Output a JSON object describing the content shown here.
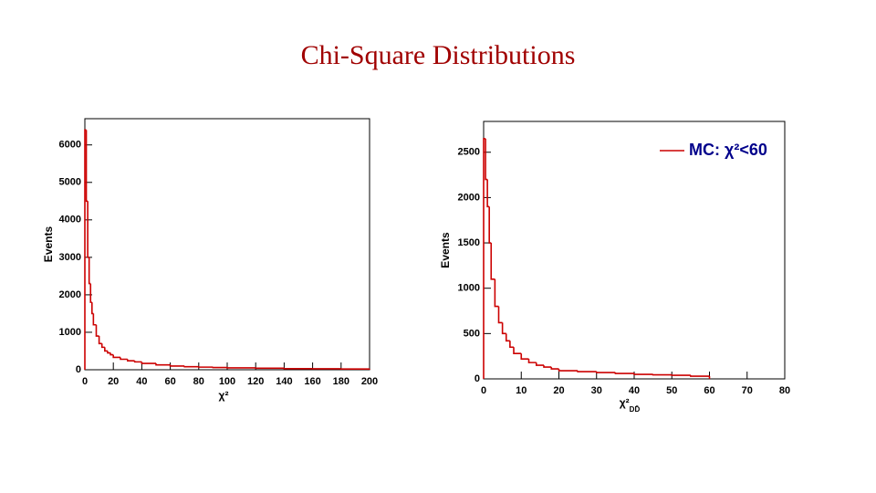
{
  "title": "Chi-Square Distributions",
  "chart_data": [
    {
      "type": "histogram",
      "color": "#cc0000",
      "x_label": "χ²",
      "y_label": "Events",
      "bins": [
        0,
        1,
        2,
        3,
        4,
        5,
        6,
        8,
        10,
        12,
        14,
        16,
        18,
        20,
        25,
        30,
        35,
        40,
        50,
        60,
        70,
        80,
        90,
        100,
        120,
        140,
        160,
        180,
        200
      ],
      "values": [
        6400,
        4500,
        3000,
        2300,
        1800,
        1500,
        1200,
        900,
        700,
        600,
        500,
        450,
        400,
        330,
        280,
        240,
        210,
        170,
        130,
        100,
        80,
        70,
        60,
        50,
        40,
        30,
        25,
        20
      ],
      "xlim": [
        0,
        200
      ],
      "xticks": [
        0,
        20,
        40,
        60,
        80,
        100,
        120,
        140,
        160,
        180,
        200
      ],
      "ylim": [
        0,
        6700
      ],
      "yticks": [
        0,
        1000,
        2000,
        3000,
        4000,
        5000,
        6000
      ]
    },
    {
      "type": "histogram",
      "x_label": "χ²",
      "x_label_subscript": "DD̄",
      "y_label": "Events",
      "legend": "upper right",
      "bins": [
        0,
        0.5,
        1,
        1.5,
        2,
        3,
        4,
        5,
        6,
        7,
        8,
        10,
        12,
        14,
        16,
        18,
        20,
        25,
        30,
        35,
        40,
        45,
        50,
        55,
        60
      ],
      "series": [
        {
          "name": "MC: χ²<60",
          "color": "#cc0000",
          "values": [
            2650,
            2200,
            1900,
            1500,
            1100,
            800,
            620,
            500,
            420,
            350,
            280,
            220,
            180,
            150,
            130,
            110,
            90,
            80,
            70,
            60,
            50,
            45,
            40,
            30
          ]
        }
      ],
      "xlim": [
        0,
        80
      ],
      "xticks": [
        0,
        10,
        20,
        30,
        40,
        50,
        60,
        70,
        80
      ],
      "ylim": [
        0,
        2840
      ],
      "yticks": [
        0,
        500,
        1000,
        1500,
        2000,
        2500
      ]
    }
  ]
}
